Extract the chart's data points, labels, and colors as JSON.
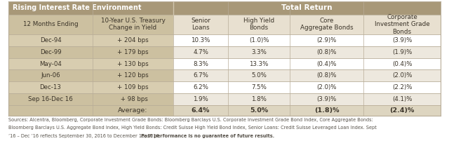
{
  "header1_left": "Rising Interest Rate Environment",
  "header1_right": "Total Return",
  "col_headers": [
    "12 Months Ending",
    "10-Year U.S. Treasury\nChange in Yield",
    "Senior\nLoans",
    "High Yield\nBonds",
    "Core\nAggregate Bonds",
    "Corporate\nInvestment Grade\nBonds"
  ],
  "rows": [
    [
      "Dec-94",
      "+ 204 bps",
      "10.3%",
      "(1.0)%",
      "(2.9)%",
      "(3.9)%"
    ],
    [
      "Dec-99",
      "+ 179 bps",
      "4.7%",
      "3.3%",
      "(0.8)%",
      "(1.9)%"
    ],
    [
      "May-04",
      "+ 130 bps",
      "8.3%",
      "13.3%",
      "(0.4)%",
      "(0.4)%"
    ],
    [
      "Jun-06",
      "+ 120 bps",
      "6.7%",
      "5.0%",
      "(0.8)%",
      "(2.0)%"
    ],
    [
      "Dec-13",
      "+ 109 bps",
      "6.2%",
      "7.5%",
      "(2.0)%",
      "(2.2)%"
    ],
    [
      "Sep 16-Dec 16",
      " + 98 bps",
      "1.9%",
      "1.8%",
      "(3.9)%",
      "(4.1)%"
    ]
  ],
  "average_row": [
    "",
    "Average:",
    "6.4%",
    "5.0%",
    "(1.8)%",
    "(2.4)%"
  ],
  "footnote_lines": [
    "Sources: Alcentra, Bloomberg, Corporate Investment Grade Bonds: Bloomberg Barclays U.S. Corporate Investment Grade Bond Index, Core Aggregate Bonds:",
    "Bloomberg Barclays U.S. Aggregate Bond Index, High Yield Bonds: Credit Suisse High Yield Bond Index, Senior Loans: Credit Suisse Leveraged Loan Index. Sept",
    "’16 – Dec ’16 reflects September 30, 2016 to December 15, 2016. ",
    "Past performance is no guarantee of future results."
  ],
  "header_bg": "#a89878",
  "header_fg": "#ffffff",
  "subheader_bg_left": "#ccc0a0",
  "subheader_bg_right": "#e8e0d0",
  "row_bg_a_left": "#d8cdb0",
  "row_bg_a_right": "#ffffff",
  "row_bg_b_left": "#ccc0a0",
  "row_bg_b_right": "#ede8de",
  "avg_bg_left": "#ccc0a0",
  "avg_bg_right": "#ddd5c0",
  "border_color": "#b8ad98",
  "text_dark": "#3a3328",
  "footnote_color": "#555048"
}
